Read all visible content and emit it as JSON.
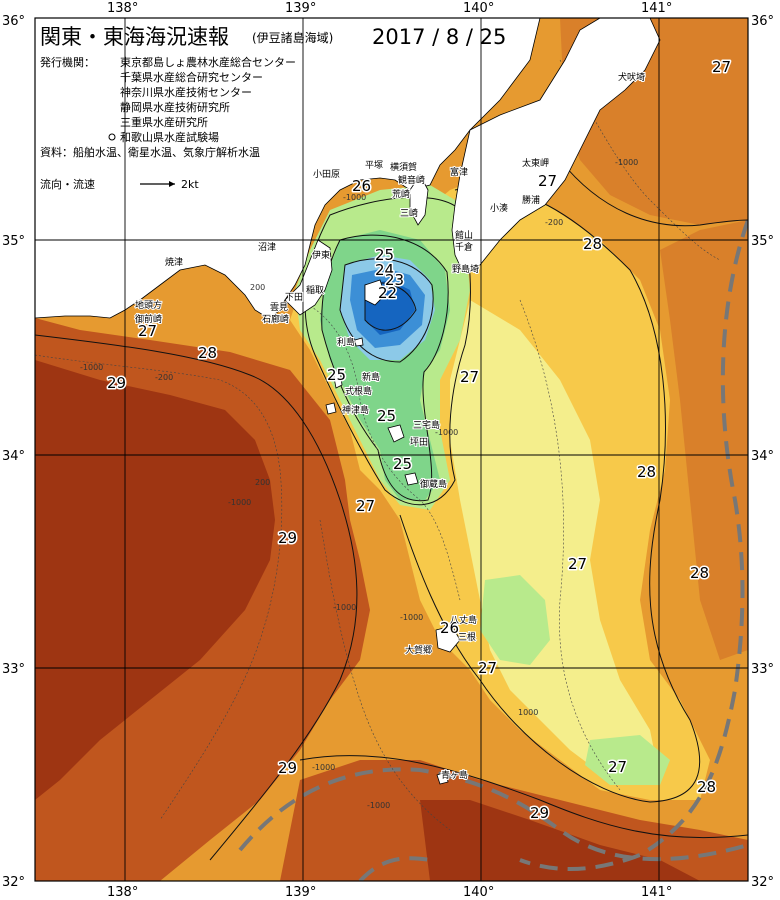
{
  "map": {
    "title": "関東・東海海況速報",
    "subtitle": "(伊豆諸島海域)",
    "date": "2017 / 8 / 25",
    "agencies_label": "発行機関：",
    "agencies": [
      "東京都島しょ農林水産総合センター",
      "千葉県水産総合研究センター",
      "神奈川県水産技術センター",
      "静岡県水産技術研究所",
      "三重県水産研究所",
      "和歌山県水産試験場"
    ],
    "source": "資料：船舶水温、衛星水温、気象庁解析水温",
    "legend_flow_label": "流向・流速",
    "legend_flow_value": "2kt",
    "lon_labels": [
      "138°",
      "139°",
      "140°",
      "141°"
    ],
    "lat_labels": [
      "36°",
      "35°",
      "34°",
      "33°",
      "32°"
    ],
    "colors": {
      "t22": "#1565c0",
      "t23": "#3c8fd6",
      "t24": "#8cc9e8",
      "t25": "#7fd58a",
      "t26": "#b8ea8c",
      "t27": "#f4ee8c",
      "t27b": "#f7c94a",
      "t28": "#e69a30",
      "t28b": "#d9802a",
      "t29": "#c0561e",
      "t29b": "#9e3512",
      "land": "#ffffff",
      "kuroshio": "#777777"
    },
    "isotherm_labels": [
      {
        "id": "iso-27-ne",
        "text": "27"
      },
      {
        "id": "iso-27-boso",
        "text": "27"
      },
      {
        "id": "iso-28-ne",
        "text": "28"
      },
      {
        "id": "iso-26-sagami",
        "text": "26"
      },
      {
        "id": "iso-25-izu",
        "text": "25"
      },
      {
        "id": "iso-24-izu",
        "text": "24"
      },
      {
        "id": "iso-23-izu",
        "text": "23"
      },
      {
        "id": "iso-22-izu",
        "text": "22"
      },
      {
        "id": "iso-27-w",
        "text": "27"
      },
      {
        "id": "iso-28-w",
        "text": "28"
      },
      {
        "id": "iso-29-w",
        "text": "29"
      },
      {
        "id": "iso-25-niijima",
        "text": "25"
      },
      {
        "id": "iso-27-mid",
        "text": "27"
      },
      {
        "id": "iso-25-miyake",
        "text": "25"
      },
      {
        "id": "iso-25-mikura",
        "text": "25"
      },
      {
        "id": "iso-28-e",
        "text": "28"
      },
      {
        "id": "iso-27-s",
        "text": "27"
      },
      {
        "id": "iso-29-sw",
        "text": "29"
      },
      {
        "id": "iso-27-se",
        "text": "27"
      },
      {
        "id": "iso-28-far-e",
        "text": "28"
      },
      {
        "id": "iso-26-hachijo",
        "text": "26"
      },
      {
        "id": "iso-27-hachijo",
        "text": "27"
      },
      {
        "id": "iso-29-sw2",
        "text": "29"
      },
      {
        "id": "iso-27-se2",
        "text": "27"
      },
      {
        "id": "iso-28-se",
        "text": "28"
      },
      {
        "id": "iso-29-s",
        "text": "29"
      }
    ],
    "places": [
      "犬吠埼",
      "太東岬",
      "勝浦",
      "小湊",
      "千倉",
      "館山",
      "野島埼",
      "富津",
      "観音崎",
      "横須賀",
      "平塚",
      "小田原",
      "荒崎",
      "三崎",
      "伊東",
      "稲取",
      "下田",
      "石廊崎",
      "沼津",
      "焼津",
      "地頭方",
      "御前崎",
      "雲見",
      "利島",
      "新島",
      "式根島",
      "神津島",
      "三宅島",
      "坪田",
      "御蔵島",
      "八丈島",
      "三根",
      "大賀郷",
      "青ヶ島"
    ],
    "depth_labels": [
      "-1000",
      "-200",
      "-1000",
      "200",
      "200",
      "-1000",
      "-1000",
      "-1000",
      "1000",
      "-1000",
      "-1000",
      "-1000",
      "-200",
      "-1000"
    ]
  }
}
